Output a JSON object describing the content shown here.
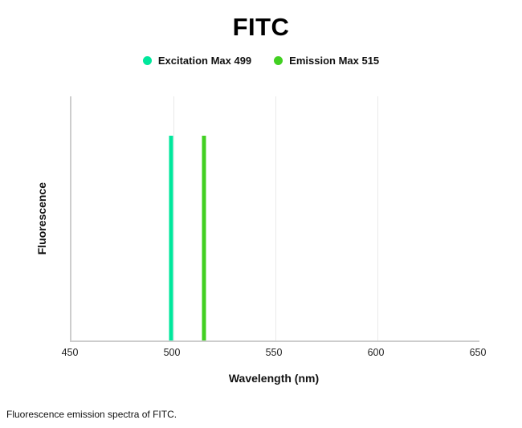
{
  "title": "FITC",
  "legend": {
    "items": [
      {
        "label": "Excitation Max 499",
        "color": "#00e79c"
      },
      {
        "label": "Emission Max 515",
        "color": "#42d022"
      }
    ]
  },
  "axes": {
    "x_label": "Wavelength (nm)",
    "y_label": "Fluorescence"
  },
  "caption": "Fluorescence emission spectra of FITC.",
  "chart_data": {
    "type": "bar",
    "title": "FITC",
    "xlabel": "Wavelength (nm)",
    "ylabel": "Fluorescence",
    "xlim": [
      450,
      650
    ],
    "x_ticks": [
      450,
      500,
      550,
      600,
      650
    ],
    "ylim": [
      0,
      1.19
    ],
    "grid": "vertical-light",
    "legend_position": "top-center",
    "series": [
      {
        "name": "Excitation Max 499",
        "peak_x": 499,
        "value": 1.0,
        "color": "#00e79c"
      },
      {
        "name": "Emission Max 515",
        "peak_x": 515,
        "value": 1.0,
        "color": "#42d022"
      }
    ]
  }
}
